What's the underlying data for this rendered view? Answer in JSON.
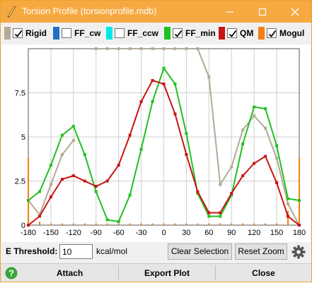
{
  "window": {
    "title": "Torsion Profile (torsionprofile.mdb)",
    "minimize_icon": "minimize-icon",
    "maximize_icon": "maximize-icon",
    "close_icon": "close-icon"
  },
  "legend": [
    {
      "label": "Rigid",
      "color": "#b3aa96",
      "checked": true
    },
    {
      "label": "FF_cw",
      "color": "#2070c8",
      "checked": false
    },
    {
      "label": "FF_ccw",
      "color": "#00e8e8",
      "checked": false
    },
    {
      "label": "FF_min",
      "color": "#22c022",
      "checked": true
    },
    {
      "label": "QM",
      "color": "#c81414",
      "checked": true
    },
    {
      "label": "Mogul",
      "color": "#f08010",
      "checked": true
    }
  ],
  "controls": {
    "e_threshold_label": "E Threshold:",
    "e_threshold_value": "10",
    "e_threshold_unit": "kcal/mol",
    "clear_selection": "Clear Selection",
    "reset_zoom": "Reset Zoom",
    "settings_icon": "gear-icon"
  },
  "footer": {
    "attach": "Attach",
    "export_plot": "Export Plot",
    "close": "Close",
    "help_icon": "help-icon"
  },
  "chart_data": {
    "type": "line",
    "xlim": [
      -180,
      180
    ],
    "ylim": [
      0,
      10
    ],
    "x_ticks": [
      -180,
      -150,
      -120,
      -90,
      -60,
      -30,
      0,
      30,
      60,
      90,
      120,
      150,
      180
    ],
    "y_ticks": [
      0,
      2.5,
      5,
      7.5
    ],
    "y_tick_labels": [
      "0",
      "2.5",
      "5",
      "7.5"
    ],
    "grid": true,
    "x": [
      -180,
      -165,
      -150,
      -135,
      -120,
      -105,
      -90,
      -75,
      -60,
      -45,
      -30,
      -15,
      0,
      15,
      30,
      45,
      60,
      75,
      90,
      105,
      120,
      135,
      150,
      165,
      180
    ],
    "series": [
      {
        "name": "Rigid",
        "color": "#b3aa96",
        "values": [
          1.4,
          0.6,
          2.3,
          4.0,
          4.8,
          null,
          10,
          10,
          10,
          10,
          10,
          10,
          10,
          10,
          10,
          10,
          8.4,
          2.3,
          3.3,
          5.4,
          6.2,
          5.5,
          3.8,
          1.2,
          0.0
        ]
      },
      {
        "name": "FF_min",
        "color": "#22c022",
        "values": [
          1.4,
          1.9,
          3.4,
          5.1,
          5.6,
          4.0,
          1.9,
          0.3,
          0.2,
          1.7,
          4.3,
          7.0,
          8.9,
          8.0,
          5.2,
          1.8,
          0.5,
          0.5,
          1.7,
          4.6,
          6.7,
          6.6,
          4.5,
          1.5,
          1.4
        ]
      },
      {
        "name": "QM",
        "color": "#c81414",
        "values": [
          0.0,
          0.5,
          1.6,
          2.6,
          2.8,
          2.5,
          2.2,
          2.5,
          3.4,
          5.1,
          7.0,
          8.2,
          8.0,
          6.3,
          4.0,
          1.9,
          0.7,
          0.7,
          1.8,
          2.8,
          3.5,
          3.9,
          2.4,
          0.5,
          0.0
        ]
      }
    ],
    "mogul_ticks": {
      "name": "Mogul",
      "color": "#f08010",
      "x": [
        -180,
        -165,
        -150,
        -135,
        -120,
        -105,
        -90,
        -75,
        -60,
        -45,
        -30,
        -15,
        0,
        15,
        30,
        45,
        60,
        75,
        90,
        105,
        120,
        135,
        150,
        165,
        180
      ],
      "values": [
        3.8,
        0.2,
        0.1,
        0.1,
        0.1,
        0.1,
        0.1,
        0.1,
        0.1,
        0.1,
        0.1,
        0.1,
        0.1,
        0.1,
        0.1,
        0.1,
        0.1,
        0.1,
        0.1,
        0.1,
        0.1,
        0.1,
        0.1,
        0.8,
        3.8
      ]
    }
  }
}
